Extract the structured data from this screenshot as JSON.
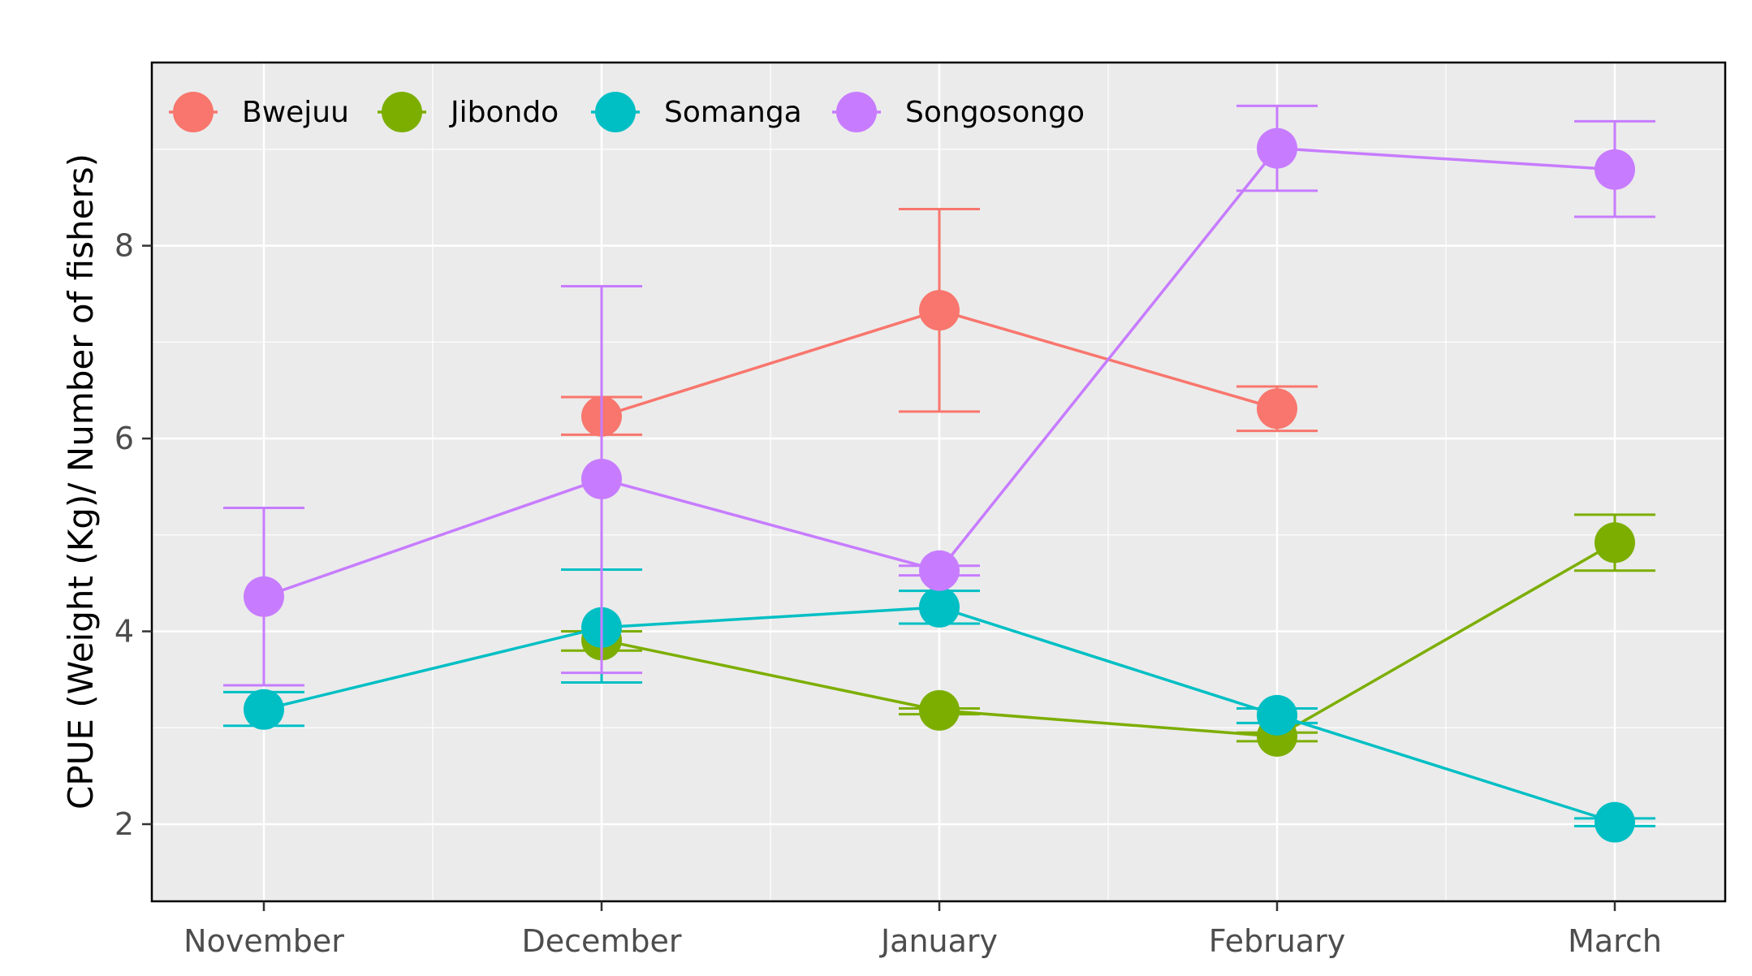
{
  "chart_data": {
    "type": "line",
    "title": "",
    "xlabel": "",
    "ylabel": "CPUE (Weight (Kg)/ Number of fishers)",
    "categories": [
      "November",
      "December",
      "January",
      "February",
      "March"
    ],
    "yticks": [
      "2",
      "4",
      "6",
      "8"
    ],
    "ylim": [
      1.2,
      9.9
    ],
    "grid": true,
    "legend_position": "top-left, inside",
    "series": [
      {
        "name": "Bwejuu",
        "color": "#F8766D",
        "values": [
          null,
          6.23,
          7.33,
          6.31,
          null
        ],
        "err_low": [
          null,
          6.04,
          6.28,
          6.08,
          null
        ],
        "err_high": [
          null,
          6.43,
          8.38,
          6.54,
          null
        ]
      },
      {
        "name": "Jibondo",
        "color": "#7CAE00",
        "values": [
          null,
          3.91,
          3.18,
          2.91,
          4.92
        ],
        "err_low": [
          null,
          3.8,
          3.14,
          2.86,
          4.63
        ],
        "err_high": [
          null,
          4.0,
          3.2,
          2.95,
          5.21
        ]
      },
      {
        "name": "Somanga",
        "color": "#00BFC4",
        "values": [
          3.19,
          4.04,
          4.25,
          3.13,
          2.02
        ],
        "err_low": [
          3.02,
          3.47,
          4.08,
          3.05,
          1.98
        ],
        "err_high": [
          3.37,
          4.64,
          4.42,
          3.2,
          2.06
        ]
      },
      {
        "name": "Songosongo",
        "color": "#C77CFF",
        "values": [
          4.36,
          5.58,
          4.63,
          9.01,
          8.79
        ],
        "err_low": [
          3.44,
          3.57,
          4.58,
          8.57,
          8.3
        ],
        "err_high": [
          5.28,
          7.58,
          4.68,
          9.45,
          9.29
        ]
      }
    ]
  }
}
